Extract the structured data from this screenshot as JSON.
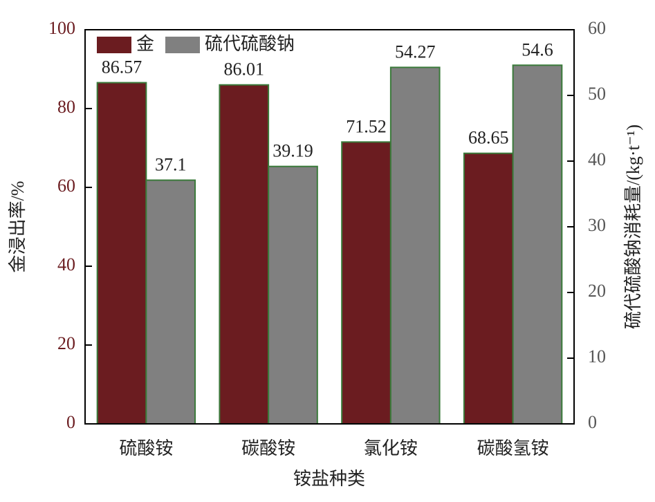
{
  "chart_data": {
    "type": "bar",
    "categories": [
      "硫酸铵",
      "碳酸铵",
      "氯化铵",
      "碳酸氢铵"
    ],
    "x_label": "铵盐种类",
    "y_label": "金浸出率/%",
    "y2_label": "硫代硫酸钠消耗量/(kg·t⁻¹)",
    "series": [
      {
        "name": "金",
        "color": "#6b1c20",
        "values": [
          86.57,
          86.01,
          71.52,
          68.65
        ]
      },
      {
        "name": "硫代硫酸钠",
        "color": "#808080",
        "axis": "y2",
        "values": [
          37.1,
          39.19,
          54.27,
          54.6
        ]
      }
    ],
    "ylim": [
      0,
      100
    ],
    "yticks": [
      0,
      20,
      40,
      60,
      80,
      100
    ],
    "ytick_color": "#6b1c20",
    "y2lim": [
      0,
      60
    ],
    "y2ticks": [
      0,
      10,
      20,
      30,
      40,
      50,
      60
    ],
    "y2tick_color": "#555555",
    "bar_edge_color": "#3a7a3a",
    "legend": "upper left"
  }
}
